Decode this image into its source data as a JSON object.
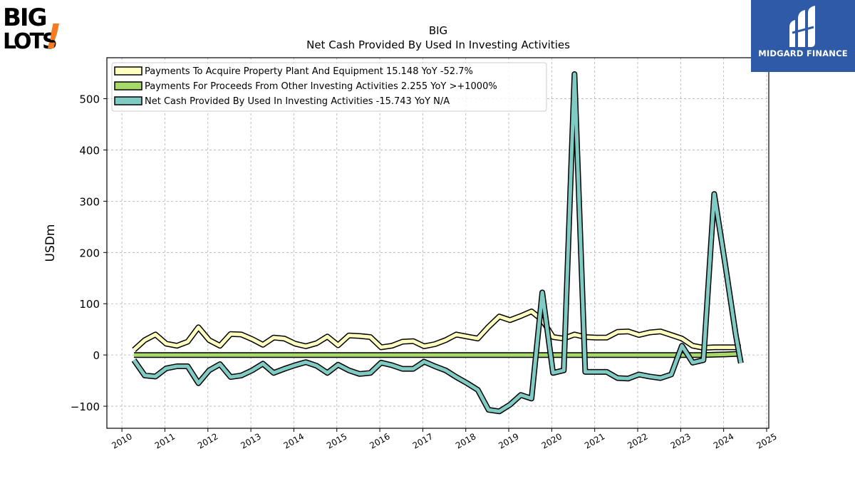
{
  "brand_left": {
    "line1": "BIG",
    "line2": "LOTS",
    "mark": "!"
  },
  "brand_right": {
    "text": "MIDGARD FINANCE"
  },
  "colors": {
    "capex": "#ffffbf",
    "other": "#a6d96a",
    "net": "#80cbc4",
    "outline": "#000000",
    "grid": "#b0b0b0",
    "mf_bg": "#2f5aa8",
    "biglots_orange": "#f47b20"
  },
  "chart_data": {
    "type": "line",
    "title": "BIG",
    "subtitle": "Net Cash Provided By Used In Investing Activities",
    "xlabel": "",
    "ylabel": "USDm",
    "xlim": [
      2009.65,
      2025.05
    ],
    "ylim": [
      -143,
      580
    ],
    "x_ticks": [
      "2010",
      "2011",
      "2012",
      "2013",
      "2014",
      "2015",
      "2016",
      "2017",
      "2018",
      "2019",
      "2020",
      "2021",
      "2022",
      "2023",
      "2024",
      "2025"
    ],
    "y_ticks": [
      -100,
      0,
      100,
      200,
      300,
      400,
      500
    ],
    "y_tick_labels": [
      "−100",
      "0",
      "100",
      "200",
      "300",
      "400",
      "500"
    ],
    "grid": true,
    "legend_position": "top-left",
    "series": [
      {
        "name": "Payments To Acquire Property Plant And Equipment  15.148 YoY -52.7%",
        "color": "#ffffbf",
        "x": [
          2010.28,
          2010.53,
          2010.78,
          2011.03,
          2011.28,
          2011.53,
          2011.78,
          2012.03,
          2012.28,
          2012.53,
          2012.78,
          2013.03,
          2013.28,
          2013.53,
          2013.78,
          2014.03,
          2014.28,
          2014.53,
          2014.78,
          2015.03,
          2015.28,
          2015.53,
          2015.78,
          2016.03,
          2016.28,
          2016.53,
          2016.78,
          2017.03,
          2017.28,
          2017.53,
          2017.78,
          2018.03,
          2018.28,
          2018.53,
          2018.78,
          2019.03,
          2019.28,
          2019.53,
          2019.78,
          2020.03,
          2020.28,
          2020.53,
          2020.78,
          2021.03,
          2021.28,
          2021.53,
          2021.78,
          2022.03,
          2022.28,
          2022.53,
          2022.78,
          2023.03,
          2023.28,
          2023.53,
          2023.78,
          2024.03,
          2024.28,
          2024.4
        ],
        "y": [
          10,
          29,
          40,
          22,
          18,
          26,
          54,
          29,
          18,
          41,
          40,
          31,
          20,
          34,
          32,
          22,
          17,
          23,
          36,
          19,
          38,
          37,
          35,
          15,
          18,
          26,
          27,
          17,
          21,
          29,
          40,
          36,
          32,
          55,
          75,
          68,
          76,
          85,
          68,
          35,
          32,
          40,
          35,
          34,
          34,
          45,
          46,
          39,
          44,
          46,
          39,
          32,
          18,
          14,
          15,
          15,
          15,
          15
        ]
      },
      {
        "name": "Payments For Proceeds From Other Investing Activities  2.255 YoY >+1000%",
        "color": "#a6d96a",
        "x": [
          2010.28,
          2010.53,
          2010.78,
          2011.03,
          2011.28,
          2011.53,
          2011.78,
          2012.03,
          2012.28,
          2012.53,
          2012.78,
          2013.03,
          2013.28,
          2013.53,
          2013.78,
          2014.03,
          2014.28,
          2014.53,
          2014.78,
          2015.03,
          2015.28,
          2015.53,
          2015.78,
          2016.03,
          2016.28,
          2016.53,
          2016.78,
          2017.03,
          2017.28,
          2017.53,
          2017.78,
          2018.03,
          2018.28,
          2018.53,
          2018.78,
          2019.03,
          2019.28,
          2019.53,
          2019.78,
          2020.03,
          2020.28,
          2020.53,
          2020.78,
          2021.03,
          2021.28,
          2021.53,
          2021.78,
          2022.03,
          2022.28,
          2022.53,
          2022.78,
          2023.03,
          2023.28,
          2023.53,
          2023.78,
          2024.03,
          2024.28,
          2024.4
        ],
        "y": [
          0,
          0,
          0,
          0,
          0,
          0,
          0,
          0,
          0,
          0,
          0,
          0,
          0,
          0,
          0,
          0,
          0,
          0,
          0,
          0,
          0,
          0,
          0,
          0,
          0,
          0,
          0,
          0,
          0,
          0,
          0,
          0,
          0,
          0,
          0,
          0,
          0,
          0,
          0,
          0,
          0,
          0,
          0,
          0,
          0,
          0,
          0,
          0,
          0,
          0,
          0,
          0,
          0,
          0,
          0.5,
          1,
          2,
          2.255
        ]
      },
      {
        "name": "Net Cash Provided By Used In Investing Activities  -15.743 YoY N/A",
        "color": "#80cbc4",
        "x": [
          2010.28,
          2010.53,
          2010.78,
          2011.03,
          2011.28,
          2011.53,
          2011.78,
          2012.03,
          2012.28,
          2012.53,
          2012.78,
          2013.03,
          2013.28,
          2013.53,
          2013.78,
          2014.03,
          2014.28,
          2014.53,
          2014.78,
          2015.03,
          2015.28,
          2015.53,
          2015.78,
          2016.03,
          2016.28,
          2016.53,
          2016.78,
          2017.03,
          2017.28,
          2017.53,
          2017.78,
          2018.03,
          2018.28,
          2018.53,
          2018.78,
          2019.03,
          2019.28,
          2019.53,
          2019.78,
          2020.03,
          2020.28,
          2020.53,
          2020.78,
          2021.03,
          2021.28,
          2021.53,
          2021.78,
          2022.03,
          2022.28,
          2022.53,
          2022.78,
          2023.03,
          2023.28,
          2023.53,
          2023.78,
          2024.03,
          2024.28,
          2024.4
        ],
        "y": [
          -10,
          -40,
          -42,
          -26,
          -22,
          -22,
          -55,
          -30,
          -18,
          -43,
          -40,
          -30,
          -17,
          -35,
          -27,
          -20,
          -14,
          -21,
          -35,
          -19,
          -30,
          -37,
          -35,
          -15,
          -20,
          -27,
          -27,
          -13,
          -22,
          -30,
          -43,
          -55,
          -68,
          -107,
          -110,
          -97,
          -78,
          -85,
          122,
          -35,
          -30,
          548,
          -33,
          -33,
          -33,
          -45,
          -46,
          -38,
          -42,
          -45,
          -38,
          18,
          -15,
          -10,
          314,
          180,
          40,
          -15.743
        ]
      }
    ]
  }
}
